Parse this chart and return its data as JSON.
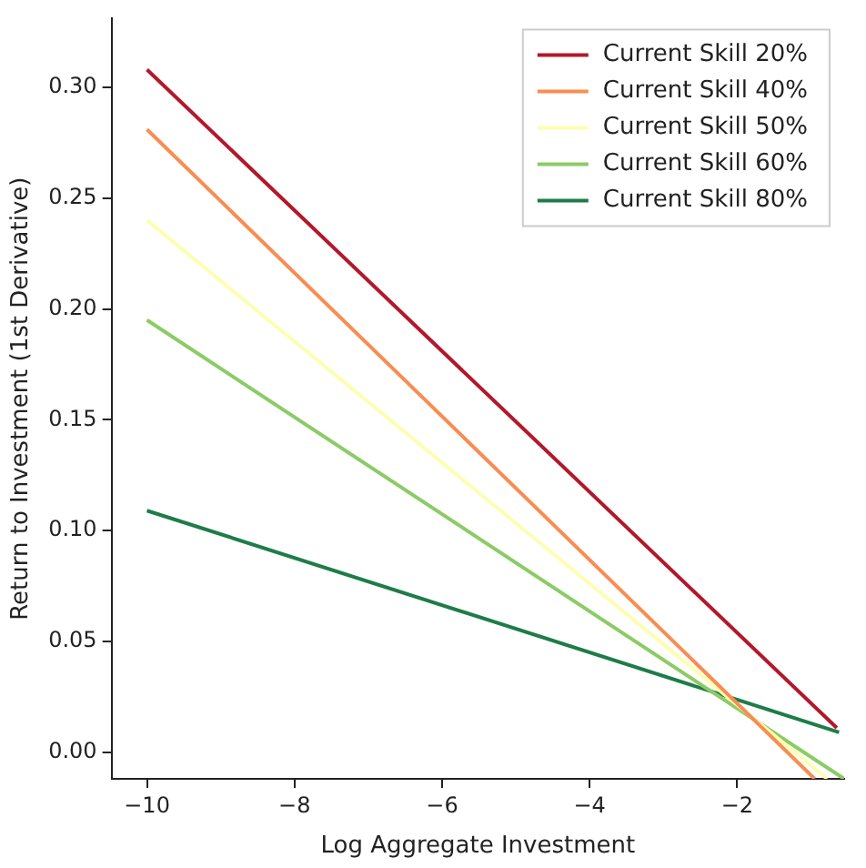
{
  "chart_data": {
    "type": "line",
    "xlabel": "Log Aggregate Investment",
    "ylabel": "Return to Investment (1st Derivative)",
    "series": [
      {
        "name": "Current Skill 20%",
        "color": "#b2182b",
        "x": [
          -10,
          -0.65
        ],
        "values": [
          0.308,
          0.011
        ]
      },
      {
        "name": "Current Skill 40%",
        "color": "#f88d52",
        "x": [
          -10,
          -0.95
        ],
        "values": [
          0.281,
          -0.012
        ]
      },
      {
        "name": "Current Skill 50%",
        "color": "#fdfeb0",
        "x": [
          -10,
          -0.78
        ],
        "values": [
          0.24,
          -0.012
        ]
      },
      {
        "name": "Current Skill 60%",
        "color": "#8ccb66",
        "x": [
          -10,
          -0.55
        ],
        "values": [
          0.195,
          -0.012
        ]
      },
      {
        "name": "Current Skill 80%",
        "color": "#1e7c48",
        "x": [
          -10,
          -0.62
        ],
        "values": [
          0.109,
          0.009
        ]
      }
    ],
    "xlim": [
      -10.48,
      -0.55
    ],
    "ylim": [
      -0.012,
      0.331
    ],
    "xticks": [
      {
        "value": -10,
        "label": "−10"
      },
      {
        "value": -8,
        "label": "−8"
      },
      {
        "value": -6,
        "label": "−6"
      },
      {
        "value": -4,
        "label": "−4"
      },
      {
        "value": -2,
        "label": "−2"
      }
    ],
    "yticks": [
      {
        "value": 0,
        "label": "0.00"
      },
      {
        "value": 0.05,
        "label": "0.05"
      },
      {
        "value": 0.1,
        "label": "0.10"
      },
      {
        "value": 0.15,
        "label": "0.15"
      },
      {
        "value": 0.2,
        "label": "0.20"
      },
      {
        "value": 0.25,
        "label": "0.25"
      },
      {
        "value": 0.3,
        "label": "0.30"
      }
    ],
    "grid": false,
    "legend": "top right",
    "marker": "none",
    "line_style": "solid"
  }
}
